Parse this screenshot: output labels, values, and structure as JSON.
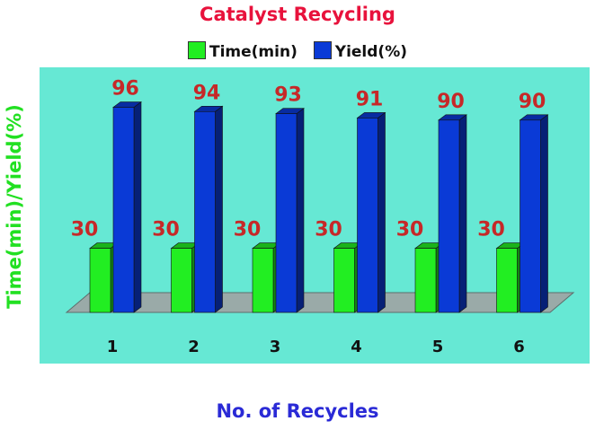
{
  "chart_data": {
    "type": "bar",
    "title": "Catalyst Recycling",
    "xlabel": "No. of Recycles",
    "ylabel": "Time(min)/Yield(%)",
    "categories": [
      "1",
      "2",
      "3",
      "4",
      "5",
      "6"
    ],
    "series": [
      {
        "name": "Time(min)",
        "values": [
          30,
          30,
          30,
          30,
          30,
          30
        ],
        "color": "#22ee22"
      },
      {
        "name": "Yield(%)",
        "values": [
          96,
          94,
          93,
          91,
          90,
          90
        ],
        "color": "#0a3ad6"
      }
    ],
    "ylim": [
      0,
      100
    ],
    "legend": "top-center",
    "grid": false,
    "colors": {
      "title": "#e8123c",
      "ylabel": "#22e022",
      "xlabel": "#2a2ad6",
      "data_labels": "#c62828",
      "plot_background": "#66e8d4",
      "floor": "#9aaaa8"
    }
  }
}
